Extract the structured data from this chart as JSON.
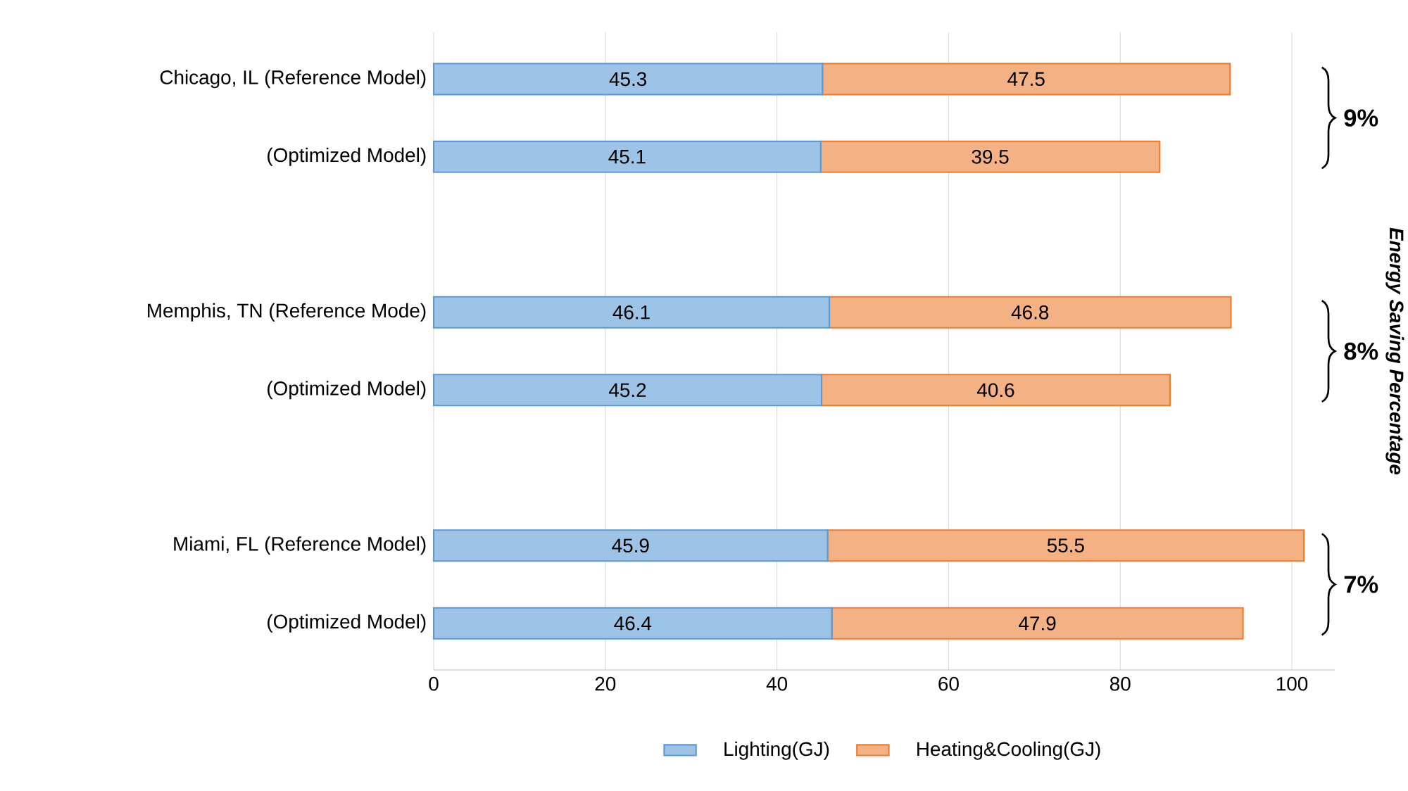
{
  "chart_data": {
    "type": "bar",
    "orientation": "horizontal",
    "stacked": true,
    "categories": [
      "Chicago, IL (Reference Model)",
      "(Optimized Model)",
      null,
      "Memphis, TN (Reference Mode)",
      "(Optimized Model)",
      null,
      "Miami, FL (Reference Model)",
      "(Optimized Model)"
    ],
    "series": [
      {
        "name": "Lighting(GJ)",
        "color": "#9dc3e6",
        "values": [
          45.3,
          45.1,
          null,
          46.1,
          45.2,
          null,
          45.9,
          46.4
        ]
      },
      {
        "name": "Heating&Cooling(GJ)",
        "color": "#f4b183",
        "values": [
          47.5,
          39.5,
          null,
          46.8,
          40.6,
          null,
          55.5,
          47.9
        ]
      }
    ],
    "xlim": [
      0,
      105
    ],
    "xticks": [
      0,
      20,
      40,
      60,
      80,
      100
    ],
    "y2label": "Energy Saving Percentage",
    "annotations": [
      "9%",
      "8%",
      "7%"
    ],
    "data_labels": true,
    "grid": "x",
    "legend": "bottom"
  }
}
